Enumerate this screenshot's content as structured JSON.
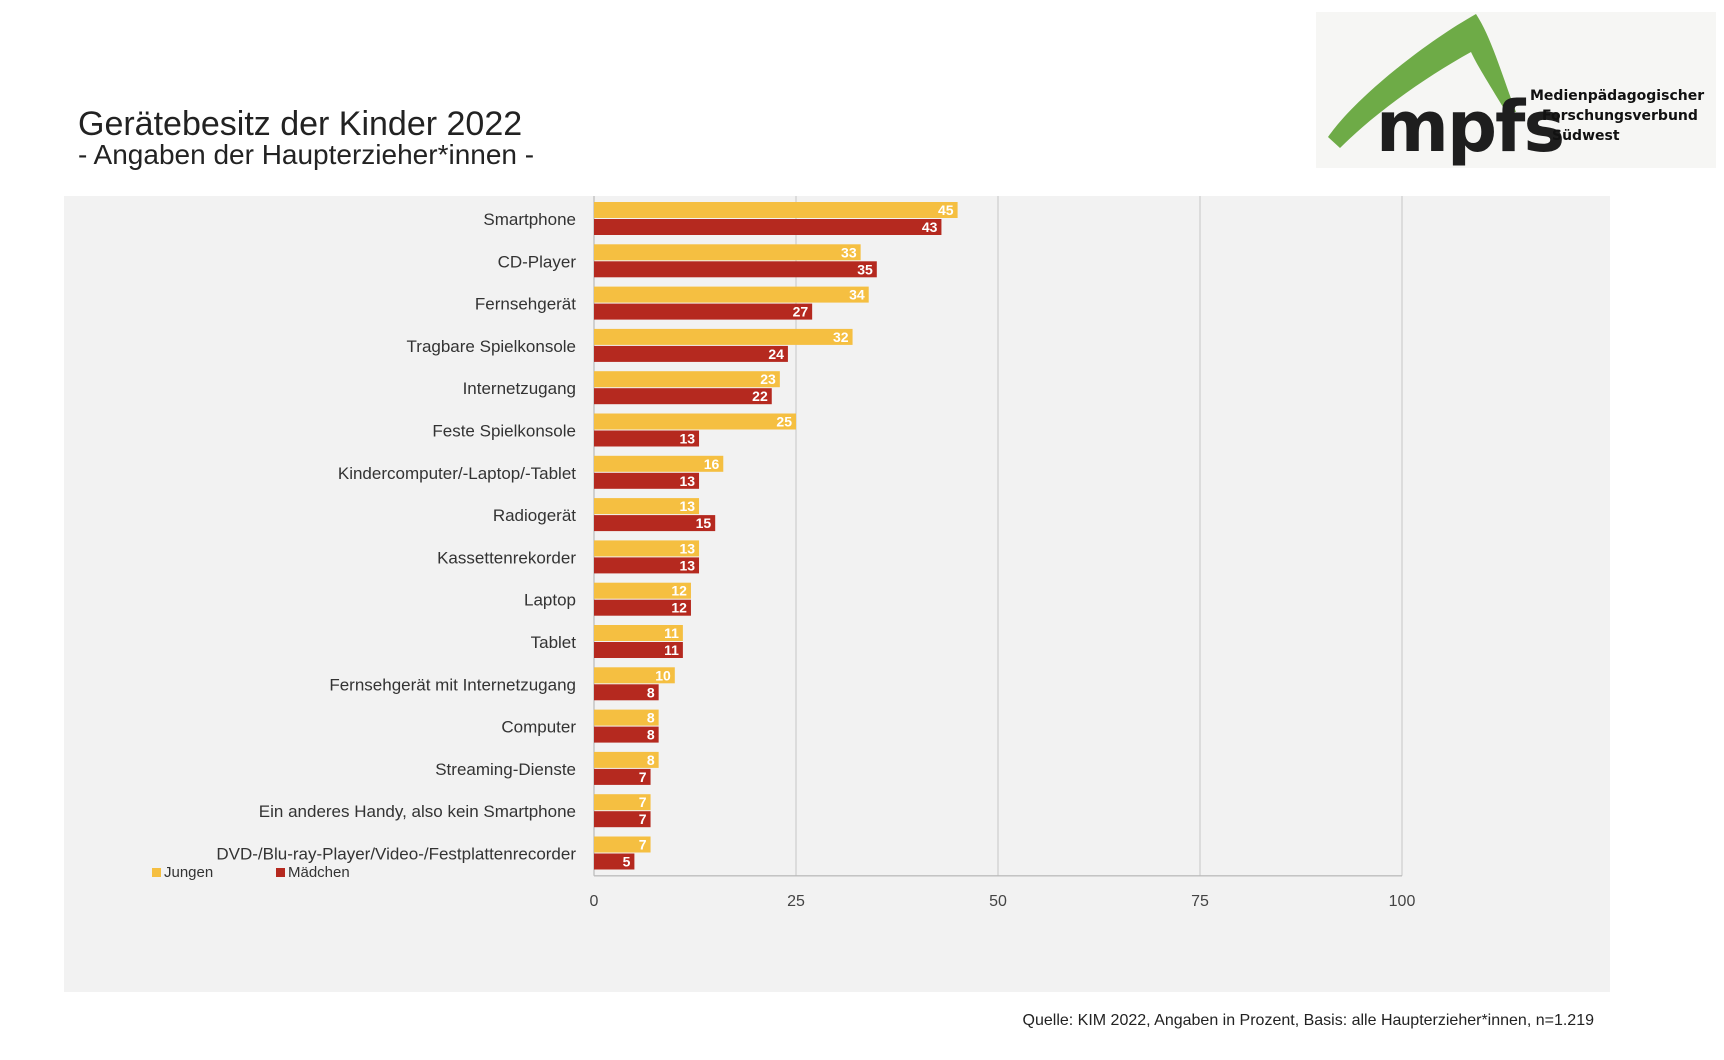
{
  "header": {
    "title": "Gerätebesitz der Kinder 2022",
    "subtitle": "- Angaben der Haupterzieher*innen -"
  },
  "logo": {
    "wordmark": "mpfs",
    "org_line1": "Medienpädagogischer",
    "org_line2": "Forschungsverbund",
    "org_line3": "Südwest",
    "color_green": "#6eab47",
    "color_text": "#1e1e1e"
  },
  "source": "Quelle: KIM 2022, Angaben in Prozent, Basis: alle Haupterzieher*innen, n=1.219",
  "chart_data": {
    "type": "bar",
    "orientation": "horizontal",
    "categories": [
      "Smartphone",
      "CD-Player",
      "Fernsehgerät",
      "Tragbare Spielkonsole",
      "Internetzugang",
      "Feste Spielkonsole",
      "Kindercomputer/-Laptop/-Tablet",
      "Radiogerät",
      "Kassettenrekorder",
      "Laptop",
      "Tablet",
      "Fernsehgerät mit Internetzugang",
      "Computer",
      "Streaming-Dienste",
      "Ein anderes Handy, also kein Smartphone",
      "DVD-/Blu-ray-Player/Video-/Festplattenrecorder"
    ],
    "series": [
      {
        "name": "Jungen",
        "color": "#f5bf41",
        "values": [
          45,
          33,
          34,
          32,
          23,
          25,
          16,
          13,
          13,
          12,
          11,
          10,
          8,
          8,
          7,
          7
        ]
      },
      {
        "name": "Mädchen",
        "color": "#b5291f",
        "values": [
          43,
          35,
          27,
          24,
          22,
          13,
          13,
          15,
          13,
          12,
          11,
          8,
          8,
          7,
          7,
          5
        ]
      }
    ],
    "xlim": [
      0,
      100
    ],
    "xticks": [
      0,
      25,
      50,
      75,
      100
    ],
    "grid": true,
    "legend_position": "bottom-left",
    "data_labels": true
  }
}
